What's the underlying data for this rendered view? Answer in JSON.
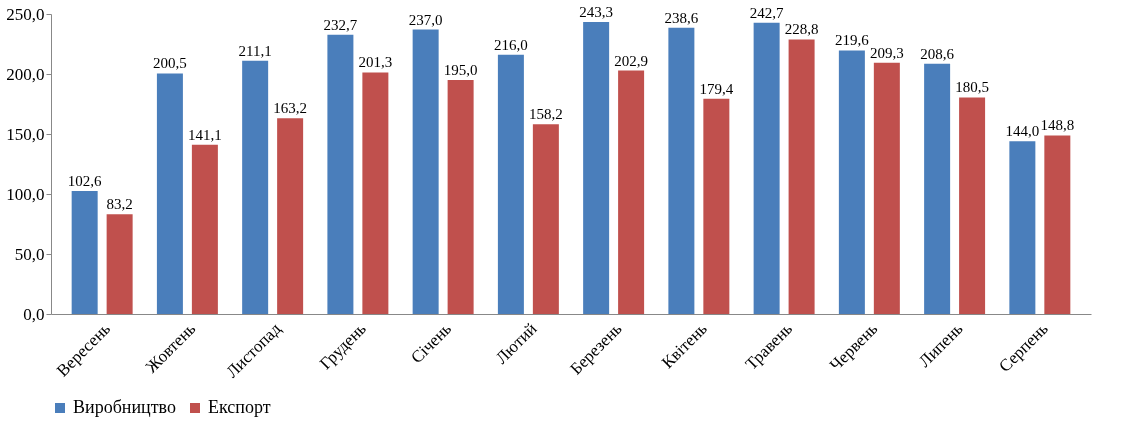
{
  "chart_data": {
    "type": "bar",
    "categories": [
      "Вересень",
      "Жовтень",
      "Листопад",
      "Грудень",
      "Січень",
      "Лютий",
      "Березень",
      "Квітень",
      "Травень",
      "Червень",
      "Липень",
      "Серпень"
    ],
    "series": [
      {
        "name": "Виробництво",
        "color": "#4a7ebb",
        "values": [
          102.6,
          200.5,
          211.1,
          232.7,
          237.0,
          216.0,
          243.3,
          238.6,
          242.7,
          219.6,
          208.6,
          144.0
        ],
        "value_labels": [
          "102,6",
          "200,5",
          "211,1",
          "232,7",
          "237,0",
          "216,0",
          "243,3",
          "238,6",
          "242,7",
          "219,6",
          "208,6",
          "144,0"
        ]
      },
      {
        "name": "Експорт",
        "color": "#c0504d",
        "values": [
          83.2,
          141.1,
          163.2,
          201.3,
          195.0,
          158.2,
          202.9,
          179.4,
          228.8,
          209.3,
          180.5,
          148.8
        ],
        "value_labels": [
          "83,2",
          "141,1",
          "163,2",
          "201,3",
          "195,0",
          "158,2",
          "202,9",
          "179,4",
          "228,8",
          "209,3",
          "180,5",
          "148,8"
        ]
      }
    ],
    "ylim": [
      0,
      250
    ],
    "yticks": [
      {
        "value": 0,
        "label": "0,0"
      },
      {
        "value": 50,
        "label": "50,0"
      },
      {
        "value": 100,
        "label": "100,0"
      },
      {
        "value": 150,
        "label": "150,0"
      },
      {
        "value": 200,
        "label": "200,0"
      },
      {
        "value": 250,
        "label": "250,0"
      }
    ],
    "grid": false,
    "legend": "bottom"
  }
}
